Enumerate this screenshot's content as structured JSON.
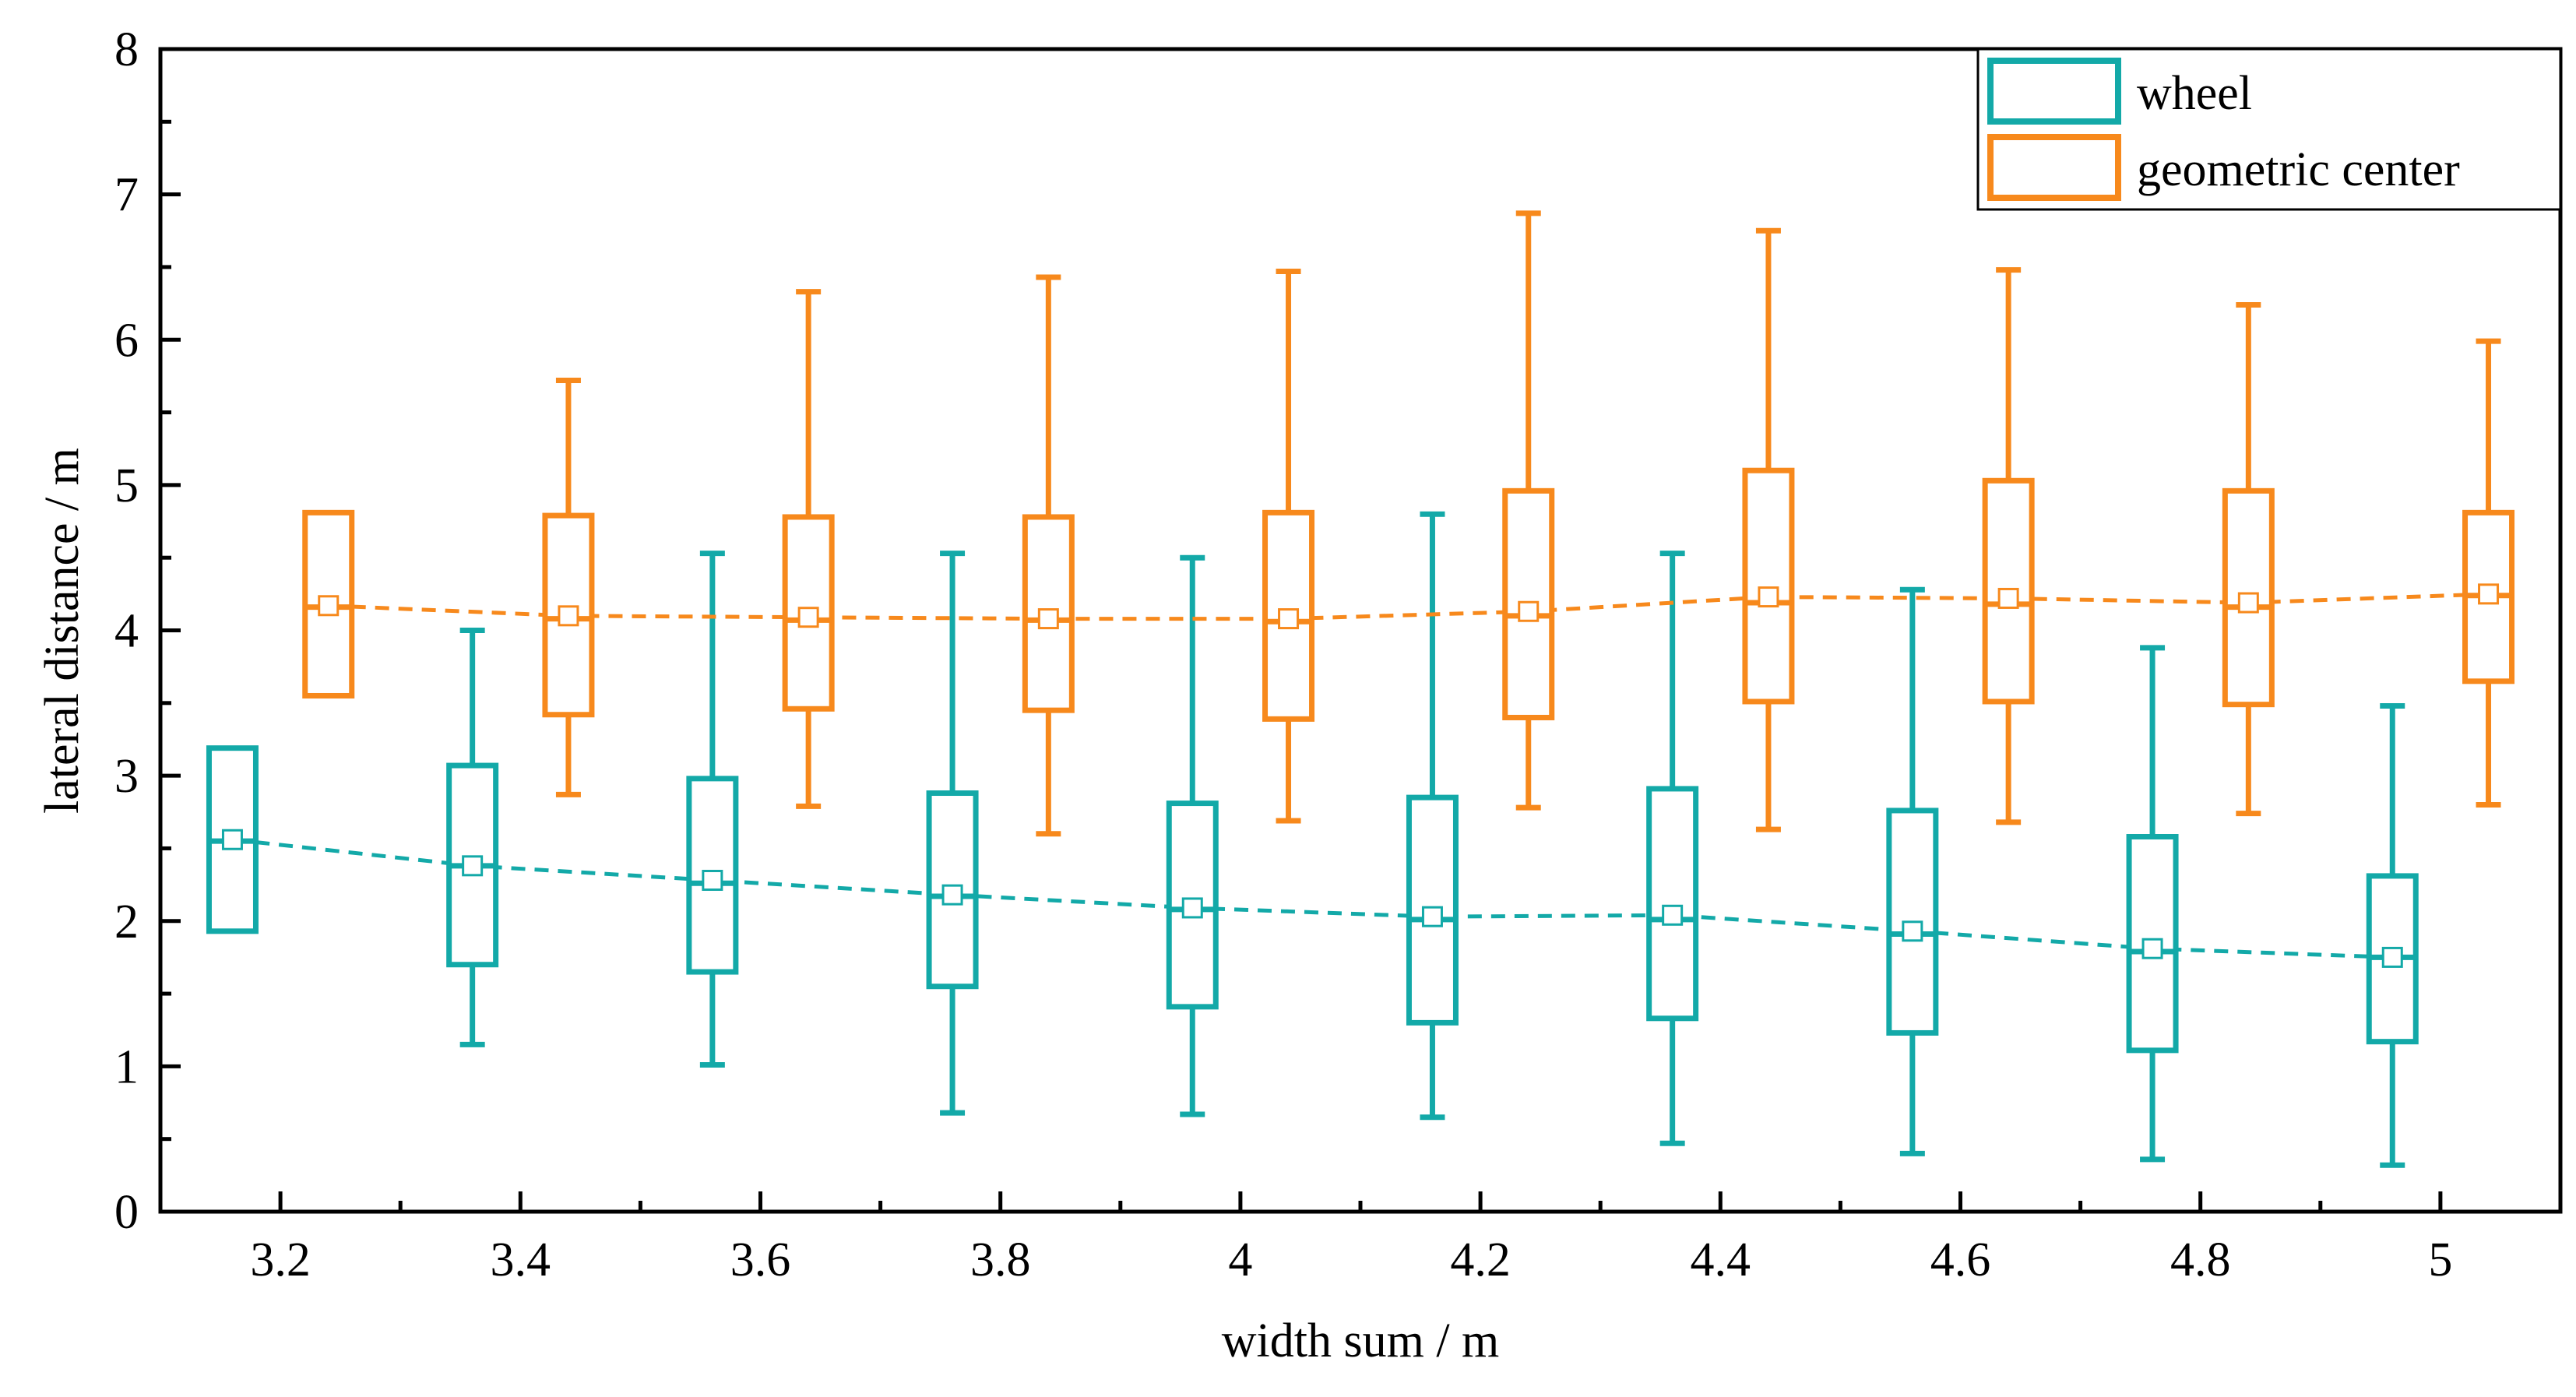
{
  "chart_data": {
    "type": "box",
    "xlabel": "width sum / m",
    "ylabel": "lateral distance / m",
    "xlim": [
      3.1,
      5.1
    ],
    "ylim": [
      0,
      8
    ],
    "x_ticks": [
      "3.2",
      "3.4",
      "3.6",
      "3.8",
      "4",
      "4.2",
      "4.4",
      "4.6",
      "4.8",
      "5"
    ],
    "y_ticks": [
      "0",
      "1",
      "2",
      "3",
      "4",
      "5",
      "6",
      "7",
      "8"
    ],
    "legend_position": "top-right",
    "series": [
      {
        "name": "wheel",
        "color": "#13a9a8",
        "boxes": [
          {
            "x": 3.16,
            "q1": 1.93,
            "median": 2.55,
            "q3": 3.19,
            "mean": 2.56
          },
          {
            "x": 3.36,
            "min": 1.15,
            "q1": 1.7,
            "median": 2.38,
            "q3": 3.07,
            "max": 4.0,
            "mean": 2.38
          },
          {
            "x": 3.56,
            "min": 1.01,
            "q1": 1.65,
            "median": 2.26,
            "q3": 2.98,
            "max": 4.53,
            "mean": 2.28
          },
          {
            "x": 3.76,
            "min": 0.68,
            "q1": 1.55,
            "median": 2.17,
            "q3": 2.88,
            "max": 4.53,
            "mean": 2.18
          },
          {
            "x": 3.96,
            "min": 0.67,
            "q1": 1.41,
            "median": 2.08,
            "q3": 2.81,
            "max": 4.5,
            "mean": 2.09
          },
          {
            "x": 4.16,
            "min": 0.65,
            "q1": 1.3,
            "median": 2.01,
            "q3": 2.85,
            "max": 4.8,
            "mean": 2.03
          },
          {
            "x": 4.36,
            "min": 0.47,
            "q1": 1.33,
            "median": 2.01,
            "q3": 2.91,
            "max": 4.53,
            "mean": 2.04
          },
          {
            "x": 4.56,
            "min": 0.4,
            "q1": 1.23,
            "median": 1.91,
            "q3": 2.76,
            "max": 4.28,
            "mean": 1.93
          },
          {
            "x": 4.76,
            "min": 0.36,
            "q1": 1.11,
            "median": 1.79,
            "q3": 2.58,
            "max": 3.88,
            "mean": 1.81
          },
          {
            "x": 4.96,
            "min": 0.32,
            "q1": 1.17,
            "median": 1.75,
            "q3": 2.31,
            "max": 3.48,
            "mean": 1.75
          }
        ]
      },
      {
        "name": "geometric center",
        "color": "#f7891c",
        "boxes": [
          {
            "x": 3.24,
            "q1": 3.55,
            "median": 4.16,
            "q3": 4.81,
            "mean": 4.17
          },
          {
            "x": 3.44,
            "min": 2.87,
            "q1": 3.42,
            "median": 4.08,
            "q3": 4.79,
            "max": 5.72,
            "mean": 4.1
          },
          {
            "x": 3.64,
            "min": 2.79,
            "q1": 3.46,
            "median": 4.07,
            "q3": 4.78,
            "max": 6.33,
            "mean": 4.09
          },
          {
            "x": 3.84,
            "min": 2.6,
            "q1": 3.45,
            "median": 4.07,
            "q3": 4.78,
            "max": 6.43,
            "mean": 4.08
          },
          {
            "x": 4.04,
            "min": 2.69,
            "q1": 3.39,
            "median": 4.06,
            "q3": 4.81,
            "max": 6.47,
            "mean": 4.08
          },
          {
            "x": 4.24,
            "min": 2.78,
            "q1": 3.4,
            "median": 4.1,
            "q3": 4.96,
            "max": 6.87,
            "mean": 4.13
          },
          {
            "x": 4.44,
            "min": 2.63,
            "q1": 3.51,
            "median": 4.19,
            "q3": 5.1,
            "max": 6.75,
            "mean": 4.23
          },
          {
            "x": 4.64,
            "min": 2.68,
            "q1": 3.51,
            "median": 4.18,
            "q3": 5.03,
            "max": 6.48,
            "mean": 4.22
          },
          {
            "x": 4.84,
            "min": 2.74,
            "q1": 3.49,
            "median": 4.16,
            "q3": 4.96,
            "max": 6.24,
            "mean": 4.19
          },
          {
            "x": 5.04,
            "min": 2.8,
            "q1": 3.65,
            "median": 4.24,
            "q3": 4.81,
            "max": 5.99,
            "mean": 4.25
          }
        ]
      }
    ]
  }
}
